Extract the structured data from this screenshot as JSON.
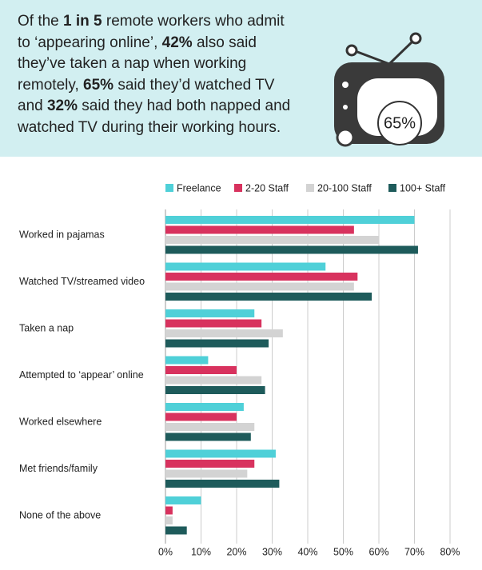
{
  "header": {
    "text": [
      "Of the ",
      "1 in 5",
      " remote workers who admit",
      "to ‘appearing online’, ",
      "42%",
      " also said",
      "they’ve taken a nap when working",
      "remotely, ",
      "65%",
      " said they’d watched TV",
      "and ",
      "32%",
      " said they had both napped and",
      "watched TV during their working hours."
    ],
    "tv_label": "65%"
  },
  "chart_data": {
    "type": "hbar",
    "categories": [
      "Worked in pajamas",
      "Watched TV/streamed video",
      "Taken a nap",
      "Attempted to ‘appear’ online",
      "Worked elsewhere",
      "Met friends/family",
      "None of the above"
    ],
    "series": [
      {
        "name": "Freelance",
        "color": "#4fd0d8",
        "values": [
          70,
          45,
          25,
          12,
          22,
          31,
          10
        ]
      },
      {
        "name": "2-20 Staff",
        "color": "#d8325e",
        "values": [
          53,
          54,
          27,
          20,
          20,
          25,
          2
        ]
      },
      {
        "name": "20-100 Staff",
        "color": "#d3d3d3",
        "values": [
          60,
          53,
          33,
          27,
          25,
          23,
          2
        ]
      },
      {
        "name": "100+ Staff",
        "color": "#1e5b5b",
        "values": [
          71,
          58,
          29,
          28,
          24,
          32,
          6
        ]
      }
    ],
    "xlim": [
      0,
      80
    ],
    "xticks": [
      {
        "value": 0,
        "label": "0%"
      },
      {
        "value": 10,
        "label": "10%"
      },
      {
        "value": 20,
        "label": "20%"
      },
      {
        "value": 30,
        "label": "30%"
      },
      {
        "value": 40,
        "label": "40%"
      },
      {
        "value": 50,
        "label": "50%"
      },
      {
        "value": 60,
        "label": "60%"
      },
      {
        "value": 70,
        "label": "70%"
      },
      {
        "value": 80,
        "label": "80%"
      }
    ],
    "grid": true,
    "legend": "top-right"
  }
}
